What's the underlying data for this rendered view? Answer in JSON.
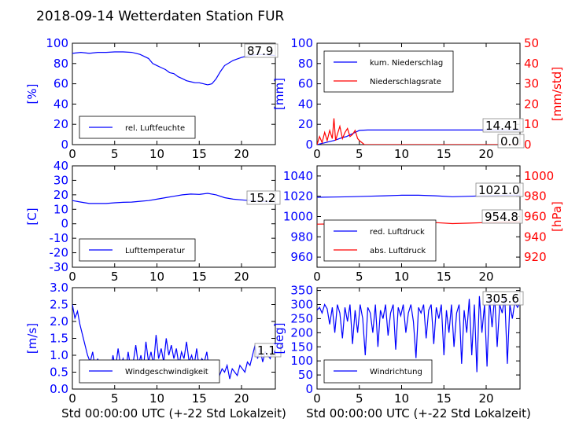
{
  "title": "2018-09-14 Wetterdaten Station FUR",
  "colors": {
    "primary": "#0000ff",
    "secondary": "#ff0000",
    "axis": "#000000"
  },
  "chart_data": [
    {
      "id": "humidity",
      "type": "line",
      "ylabel": "[%]",
      "xlim": [
        0,
        24
      ],
      "ylim": [
        0,
        100
      ],
      "xticks": [
        0,
        5,
        10,
        15,
        20
      ],
      "yticks": [
        0,
        20,
        40,
        60,
        80,
        100
      ],
      "grid": false,
      "legend_position": "lower-left",
      "last_value_label": "87.9",
      "series": [
        {
          "name": "rel. Luftfeuchte",
          "color": "#0000ff",
          "axis": "left",
          "x": [
            0,
            1,
            2,
            3,
            4,
            5,
            6,
            7,
            8,
            9,
            9.5,
            10,
            10.5,
            11,
            11.5,
            12,
            12.5,
            13,
            13.5,
            14,
            14.5,
            15,
            15.5,
            16,
            16.5,
            17,
            17.5,
            18,
            19,
            20,
            21,
            22,
            23,
            24
          ],
          "y": [
            90,
            91,
            90,
            91,
            91,
            91.5,
            91.5,
            91,
            89,
            85,
            80,
            78,
            76,
            74,
            71,
            70,
            67,
            65,
            63,
            62,
            61,
            61,
            60,
            59,
            60,
            65,
            72,
            78,
            83,
            86,
            88,
            89,
            88.5,
            87.9
          ]
        }
      ]
    },
    {
      "id": "precipitation",
      "type": "line",
      "ylabel": "[mm]",
      "y2label": "[mm/std]",
      "xlim": [
        0,
        24
      ],
      "ylim": [
        0,
        100
      ],
      "y2lim": [
        0,
        50
      ],
      "xticks": [
        0,
        5,
        10,
        15,
        20
      ],
      "yticks": [
        0,
        20,
        40,
        60,
        80,
        100
      ],
      "y2ticks": [
        0,
        10,
        20,
        30,
        40,
        50
      ],
      "grid": false,
      "legend_position": "upper-left",
      "last_value_label": "14.41",
      "last_value_label_2": "0.0",
      "series": [
        {
          "name": "kum. Niederschlag",
          "color": "#0000ff",
          "axis": "left",
          "x": [
            0,
            0.5,
            1,
            1.5,
            2,
            2.5,
            3,
            3.5,
            4,
            4.5,
            5,
            5.5,
            6,
            8,
            10,
            12,
            14,
            16,
            18,
            20,
            22,
            24
          ],
          "y": [
            0,
            1,
            2,
            3,
            4,
            5.5,
            7,
            8,
            10,
            12,
            14,
            14.3,
            14.4,
            14.41,
            14.41,
            14.41,
            14.41,
            14.41,
            14.41,
            14.41,
            14.41,
            14.41
          ]
        },
        {
          "name": "Niederschlagsrate",
          "color": "#ff0000",
          "axis": "right",
          "x": [
            0,
            0.3,
            0.6,
            0.9,
            1.2,
            1.5,
            1.8,
            2.0,
            2.2,
            2.4,
            2.7,
            3.0,
            3.3,
            3.6,
            3.9,
            4.2,
            4.5,
            4.8,
            5.0,
            5.3,
            5.6,
            6,
            8,
            10,
            12,
            14,
            16,
            18,
            20,
            22,
            24
          ],
          "y": [
            0,
            4,
            1,
            6,
            2,
            7,
            3,
            13,
            2,
            5,
            9,
            3,
            6,
            8,
            4,
            5,
            7,
            3,
            2,
            1,
            0,
            0,
            0,
            0,
            0,
            0,
            0,
            0,
            0,
            0,
            0
          ]
        }
      ]
    },
    {
      "id": "temperature",
      "type": "line",
      "ylabel": "[C]",
      "xlim": [
        0,
        24
      ],
      "ylim": [
        -30,
        40
      ],
      "xticks": [
        0,
        5,
        10,
        15,
        20
      ],
      "yticks": [
        -30,
        -20,
        -10,
        0,
        10,
        20,
        30,
        40
      ],
      "grid": false,
      "legend_position": "lower-left",
      "last_value_label": "15.2",
      "series": [
        {
          "name": "Lufttemperatur",
          "color": "#0000ff",
          "axis": "left",
          "x": [
            0,
            1,
            2,
            3,
            4,
            5,
            6,
            7,
            8,
            9,
            10,
            11,
            12,
            13,
            14,
            15,
            16,
            17,
            18,
            19,
            20,
            21,
            22,
            23,
            24
          ],
          "y": [
            16,
            15,
            14,
            14,
            14,
            14.5,
            14.8,
            15,
            15.5,
            16,
            17,
            18,
            19,
            20,
            20.5,
            20.3,
            21,
            20,
            18,
            17,
            16.5,
            16,
            15.5,
            15.3,
            15.2
          ]
        }
      ]
    },
    {
      "id": "pressure",
      "type": "line",
      "ylim": [
        950,
        1050
      ],
      "y2label": "[hPa]",
      "y2lim": [
        910,
        1010
      ],
      "xlim": [
        0,
        24
      ],
      "xticks": [
        0,
        5,
        10,
        15,
        20
      ],
      "yticks": [
        960,
        980,
        1000,
        1020,
        1040
      ],
      "y2ticks": [
        920,
        940,
        960,
        980,
        1000
      ],
      "grid": false,
      "legend_position": "lower-left",
      "last_value_label": "1021.0",
      "last_value_label_2": "954.8",
      "series": [
        {
          "name": "red. Luftdruck",
          "color": "#0000ff",
          "axis": "left",
          "x": [
            0,
            2,
            4,
            6,
            8,
            10,
            12,
            14,
            16,
            18,
            20,
            22,
            24
          ],
          "y": [
            1019,
            1019.2,
            1019.5,
            1020,
            1020.5,
            1021,
            1021,
            1020.5,
            1019.5,
            1020,
            1020.5,
            1021,
            1021
          ]
        },
        {
          "name": "abs. Luftdruck",
          "color": "#ff0000",
          "axis": "right",
          "x": [
            0,
            2,
            4,
            6,
            8,
            10,
            12,
            14,
            16,
            18,
            20,
            22,
            24
          ],
          "y": [
            952.5,
            952.7,
            953,
            953.5,
            954,
            954.5,
            954.5,
            954,
            953,
            953.5,
            954,
            954.6,
            954.8
          ]
        }
      ]
    },
    {
      "id": "windspeed",
      "type": "line",
      "ylabel": "[m/s]",
      "xlabel": "Std 00:00:00 UTC (+-22 Std Lokalzeit)",
      "xlim": [
        0,
        24
      ],
      "ylim": [
        0,
        3.0
      ],
      "xticks": [
        0,
        5,
        10,
        15,
        20
      ],
      "yticks": [
        0.0,
        0.5,
        1.0,
        1.5,
        2.0,
        2.5,
        3.0
      ],
      "grid": false,
      "legend_position": "lower-left",
      "last_value_label": "1.1",
      "series": [
        {
          "name": "Windgeschwindigkeit",
          "color": "#0000ff",
          "axis": "left",
          "x": [
            0,
            0.3,
            0.6,
            0.9,
            1.2,
            1.5,
            1.8,
            2.1,
            2.4,
            2.7,
            3.0,
            3.3,
            3.6,
            3.9,
            4.2,
            4.5,
            4.8,
            5.1,
            5.4,
            5.7,
            6.0,
            6.3,
            6.6,
            6.9,
            7.2,
            7.5,
            7.8,
            8.1,
            8.4,
            8.7,
            9.0,
            9.3,
            9.6,
            9.9,
            10.2,
            10.5,
            10.8,
            11.1,
            11.4,
            11.7,
            12.0,
            12.3,
            12.6,
            12.9,
            13.2,
            13.5,
            13.8,
            14.1,
            14.4,
            14.7,
            15.0,
            15.3,
            15.6,
            15.9,
            16.2,
            16.5,
            16.8,
            17.1,
            17.4,
            17.7,
            18.0,
            18.3,
            18.6,
            18.9,
            19.2,
            19.5,
            19.8,
            20.1,
            20.4,
            20.7,
            21.0,
            21.3,
            21.6,
            21.9,
            22.2,
            22.5,
            22.8,
            23.1,
            23.4,
            23.7,
            24.0
          ],
          "y": [
            2.5,
            2.1,
            2.3,
            1.9,
            1.6,
            1.3,
            1.0,
            0.8,
            1.1,
            0.6,
            0.9,
            0.5,
            0.7,
            0.3,
            0.8,
            0.5,
            1.0,
            0.6,
            1.2,
            0.7,
            0.9,
            0.5,
            1.1,
            0.6,
            0.8,
            1.3,
            0.7,
            1.0,
            0.6,
            1.4,
            0.8,
            1.1,
            0.7,
            1.6,
            0.9,
            1.2,
            0.8,
            1.5,
            1.0,
            1.3,
            0.9,
            1.2,
            0.7,
            1.1,
            0.9,
            1.4,
            0.8,
            1.0,
            0.7,
            1.2,
            0.6,
            0.9,
            0.8,
            1.1,
            0.5,
            0.8,
            0.6,
            0.7,
            0.4,
            0.6,
            0.5,
            0.7,
            0.3,
            0.6,
            0.5,
            0.4,
            0.7,
            0.6,
            0.5,
            0.8,
            0.7,
            1.0,
            1.3,
            0.9,
            1.2,
            0.8,
            1.1,
            1.0,
            0.9,
            1.2,
            1.1
          ]
        }
      ]
    },
    {
      "id": "winddirection",
      "type": "line",
      "ylabel": "[deg]",
      "xlabel": "Std 00:00:00 UTC (+-22 Std Lokalzeit)",
      "xlim": [
        0,
        24
      ],
      "ylim": [
        0,
        360
      ],
      "xticks": [
        0,
        5,
        10,
        15,
        20
      ],
      "yticks": [
        0,
        50,
        100,
        150,
        200,
        250,
        300,
        350
      ],
      "grid": false,
      "legend_position": "lower-left",
      "last_value_label": "305.6",
      "series": [
        {
          "name": "Windrichtung",
          "color": "#0000ff",
          "axis": "left",
          "x": [
            0,
            0.3,
            0.6,
            0.9,
            1.2,
            1.5,
            1.8,
            2.1,
            2.4,
            2.7,
            3.0,
            3.3,
            3.6,
            3.9,
            4.2,
            4.5,
            4.8,
            5.1,
            5.4,
            5.7,
            6.0,
            6.3,
            6.6,
            6.9,
            7.2,
            7.5,
            7.8,
            8.1,
            8.4,
            8.7,
            9.0,
            9.3,
            9.6,
            9.9,
            10.2,
            10.5,
            10.8,
            11.1,
            11.4,
            11.7,
            12.0,
            12.3,
            12.6,
            12.9,
            13.2,
            13.5,
            13.8,
            14.1,
            14.4,
            14.7,
            15.0,
            15.3,
            15.6,
            15.9,
            16.2,
            16.5,
            16.8,
            17.1,
            17.4,
            17.7,
            18.0,
            18.3,
            18.6,
            18.9,
            19.2,
            19.5,
            19.8,
            20.1,
            20.4,
            20.7,
            21.0,
            21.3,
            21.6,
            21.9,
            22.2,
            22.5,
            22.8,
            23.1,
            23.4,
            23.7,
            24.0
          ],
          "y": [
            280,
            290,
            270,
            300,
            285,
            230,
            290,
            200,
            300,
            270,
            180,
            290,
            240,
            300,
            160,
            280,
            200,
            300,
            250,
            120,
            290,
            270,
            200,
            300,
            150,
            280,
            250,
            300,
            190,
            270,
            300,
            140,
            290,
            260,
            300,
            200,
            270,
            300,
            240,
            110,
            290,
            270,
            300,
            180,
            280,
            300,
            160,
            290,
            250,
            300,
            120,
            280,
            200,
            300,
            150,
            270,
            300,
            90,
            280,
            200,
            320,
            120,
            300,
            60,
            330,
            200,
            300,
            80,
            320,
            220,
            330,
            150,
            300,
            270,
            330,
            90,
            300,
            250,
            310,
            290,
            305.6
          ]
        }
      ]
    }
  ]
}
